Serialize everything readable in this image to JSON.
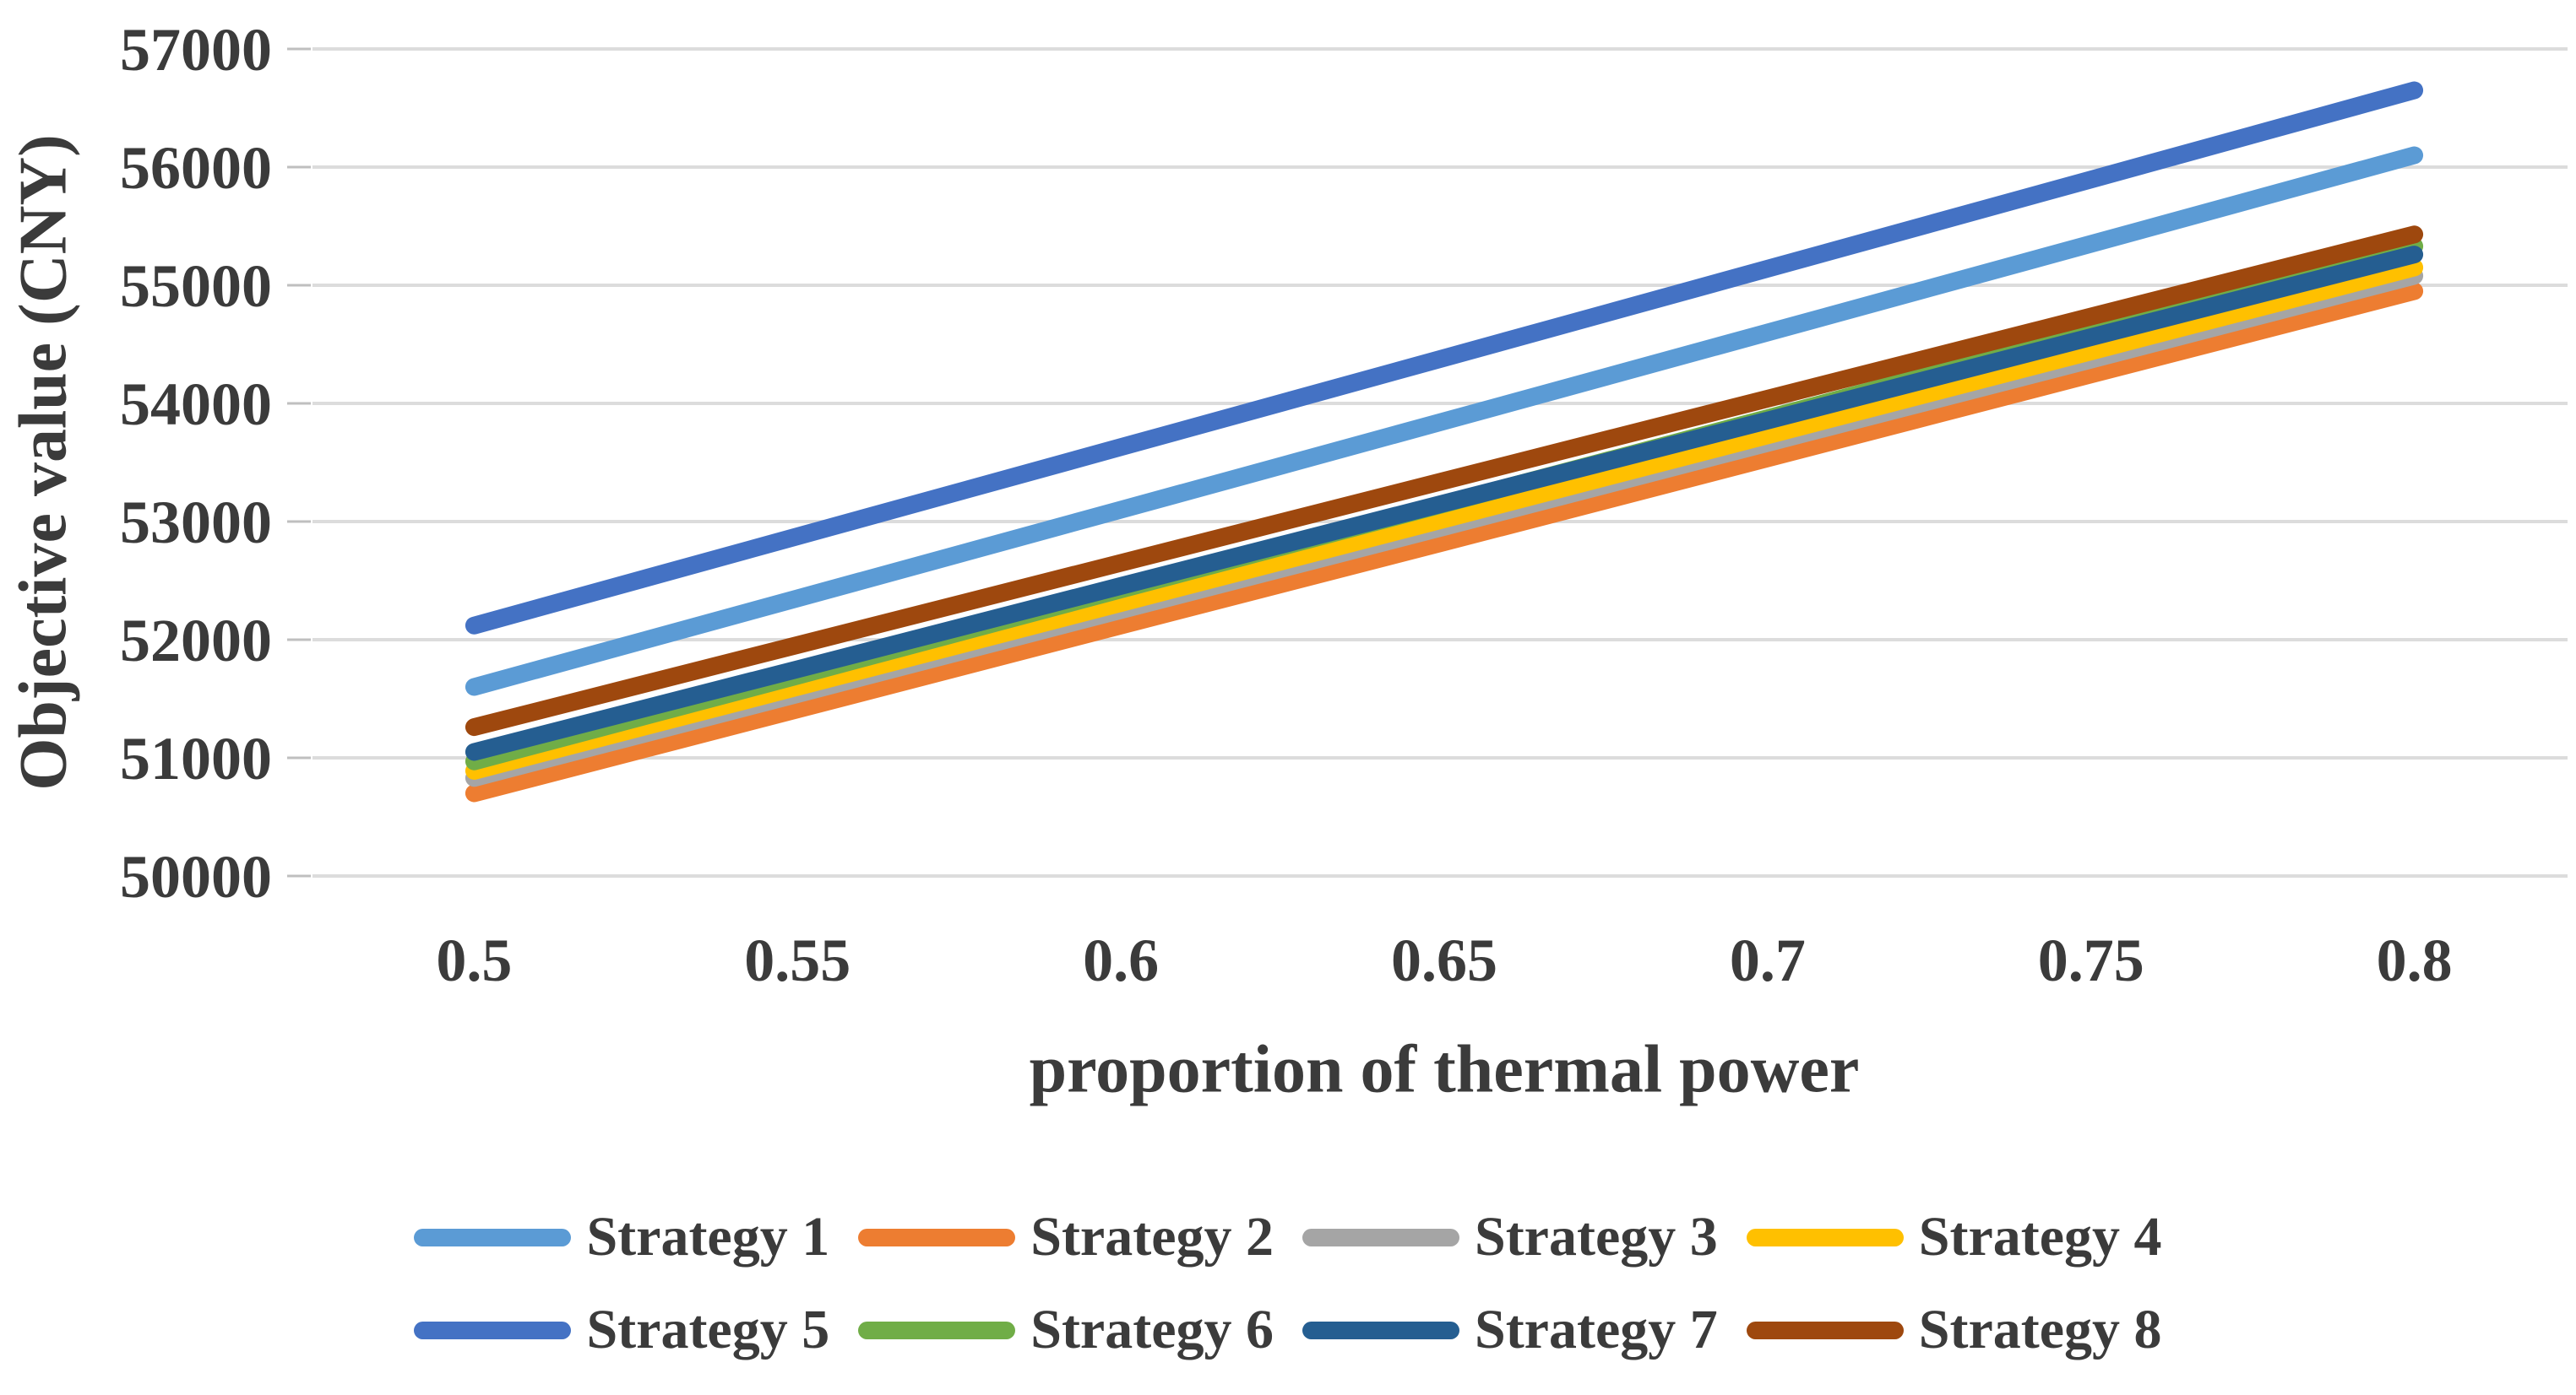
{
  "chart_data": {
    "type": "line",
    "title": "",
    "xlabel": "proportion of thermal power",
    "ylabel": "Objective value (CNY)",
    "x": [
      0.5,
      0.55,
      0.6,
      0.65,
      0.7,
      0.75,
      0.8
    ],
    "x_tick_labels": [
      "0.5",
      "0.55",
      "0.6",
      "0.65",
      "0.7",
      "0.75",
      "0.8"
    ],
    "ylim": [
      50000,
      57000
    ],
    "y_tick_step": 1000,
    "y_tick_labels": [
      "50000",
      "51000",
      "52000",
      "53000",
      "54000",
      "55000",
      "56000",
      "57000"
    ],
    "grid": "horizontal",
    "legend_position": "bottom",
    "legend_columns": 4,
    "series": [
      {
        "name": "Strategy 1",
        "color": "#5B9BD5",
        "values": [
          51600,
          52350,
          53100,
          53850,
          54600,
          55350,
          56100
        ]
      },
      {
        "name": "Strategy 2",
        "color": "#ED7D31",
        "values": [
          50700,
          51410,
          52120,
          52825,
          53535,
          54245,
          54950
        ]
      },
      {
        "name": "Strategy 3",
        "color": "#A5A5A5",
        "values": [
          50830,
          51540,
          52250,
          52955,
          53665,
          54370,
          55080
        ]
      },
      {
        "name": "Strategy 4",
        "color": "#FFC000",
        "values": [
          50890,
          51600,
          52310,
          53020,
          53730,
          54440,
          55150
        ]
      },
      {
        "name": "Strategy 5",
        "color": "#4472C4",
        "values": [
          52120,
          52875,
          53630,
          54385,
          55140,
          55895,
          56650
        ]
      },
      {
        "name": "Strategy 6",
        "color": "#70AD47",
        "values": [
          50970,
          51695,
          52425,
          53150,
          53875,
          54605,
          55330
        ]
      },
      {
        "name": "Strategy 7",
        "color": "#255E91",
        "values": [
          51050,
          51750,
          52455,
          53155,
          53855,
          54560,
          55260
        ]
      },
      {
        "name": "Strategy 8",
        "color": "#9E480E",
        "values": [
          51260,
          51955,
          52650,
          53345,
          54040,
          54735,
          55430
        ]
      }
    ]
  },
  "style_colors": {
    "gridline": "#DCDCDC",
    "tick_mark": "#BFBFBF",
    "text": "#3b3b3b",
    "background": "#FFFFFF"
  }
}
